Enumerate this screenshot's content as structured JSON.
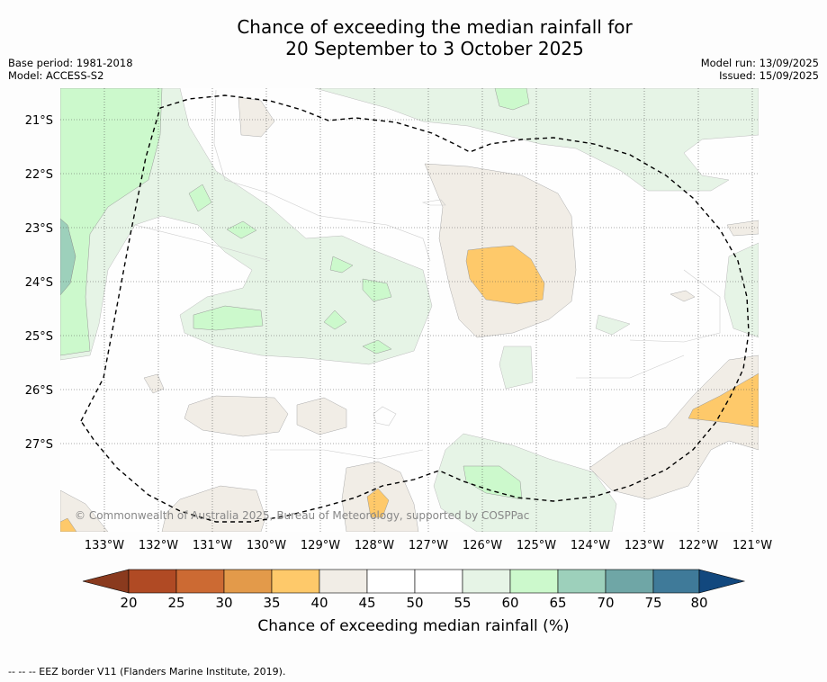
{
  "title": {
    "line1": "Chance of exceeding the median rainfall for",
    "line2": "20 September to 3 October 2025"
  },
  "meta_left": {
    "base_period": "Base period: 1981-2018",
    "model": "Model: ACCESS-S2"
  },
  "meta_right": {
    "model_run": "Model run: 13/09/2025",
    "issued": "Issued: 15/09/2025"
  },
  "map": {
    "lat_labels": [
      "21°S",
      "22°S",
      "23°S",
      "24°S",
      "25°S",
      "26°S",
      "27°S"
    ],
    "lon_labels": [
      "133°W",
      "132°W",
      "131°W",
      "130°W",
      "129°W",
      "128°W",
      "127°W",
      "126°W",
      "125°W",
      "124°W",
      "123°W",
      "122°W",
      "121°W"
    ],
    "copyright": "© Commonwealth of Australia 2025, Bureau of Meteorology, supported by COSPPac",
    "palette": {
      "p20": "#8a3a1e",
      "p25": "#b04a24",
      "p30": "#cc6a33",
      "p35": "#e39a4a",
      "p40": "#fec96a",
      "p45": "#f1ede6",
      "p50": "#ffffff",
      "p55": "#ffffff",
      "p60": "#e6f4e6",
      "p65": "#ccf9cc",
      "p70": "#9dd0bb",
      "p75": "#6fa6a6",
      "p80": "#3f7a99",
      "p85": "#12487e"
    }
  },
  "colorbar": {
    "ticks": [
      "20",
      "25",
      "30",
      "35",
      "40",
      "45",
      "50",
      "55",
      "60",
      "65",
      "70",
      "75",
      "80"
    ],
    "title": "Chance of exceeding median rainfall (%)"
  },
  "footnote": "-- -- -- EEZ border V11 (Flanders Marine Institute, 2019)."
}
